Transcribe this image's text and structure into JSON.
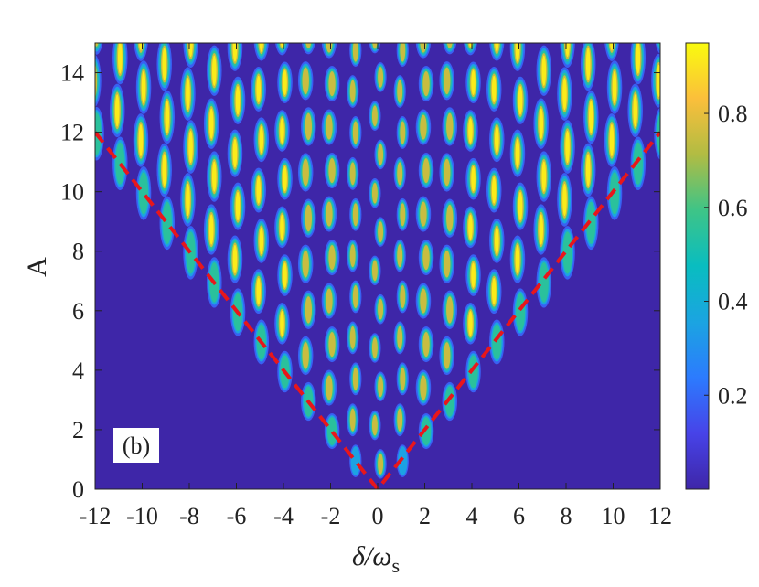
{
  "chart_data": {
    "type": "heatmap",
    "title": "",
    "xlabel": "δ/ω",
    "xlabel_sub": "s",
    "ylabel": "A",
    "xlim": [
      -12,
      12
    ],
    "ylim": [
      0,
      15
    ],
    "xticks": [
      -12,
      -10,
      -8,
      -6,
      -4,
      -2,
      0,
      2,
      4,
      6,
      8,
      10,
      12
    ],
    "xtick_labels": [
      "-12",
      "-10",
      "-8",
      "-6",
      "-4",
      "-2",
      "0",
      "2",
      "4",
      "6",
      "8",
      "10",
      "12"
    ],
    "yticks": [
      0,
      2,
      4,
      6,
      8,
      10,
      12,
      14
    ],
    "ytick_labels": [
      "0",
      "2",
      "4",
      "6",
      "8",
      "10",
      "12",
      "14"
    ],
    "colorbar": {
      "range": [
        0,
        0.95
      ],
      "ticks": [
        0.2,
        0.4,
        0.6,
        0.8
      ],
      "tick_labels": [
        "0.2",
        "0.4",
        "0.6",
        "0.8"
      ],
      "colormap": "parula"
    },
    "panel_label": "(b)",
    "overlay_lines": [
      {
        "style": "dashed",
        "color": "#e8161b",
        "points": [
          [
            -12,
            12
          ],
          [
            0,
            0
          ],
          [
            12,
            12
          ]
        ]
      }
    ],
    "description_peaks": {
      "resonance_condition": "|δ/ω_s| = integer, A ≥ |δ/ω_s|",
      "peak_max": 0.95
    },
    "grid": false,
    "legend": "none"
  },
  "colors": {
    "background_low": "#3e26a8",
    "peak_high": "#f9fb0e",
    "dashed_line": "#e8161b",
    "axis": "#222222"
  }
}
